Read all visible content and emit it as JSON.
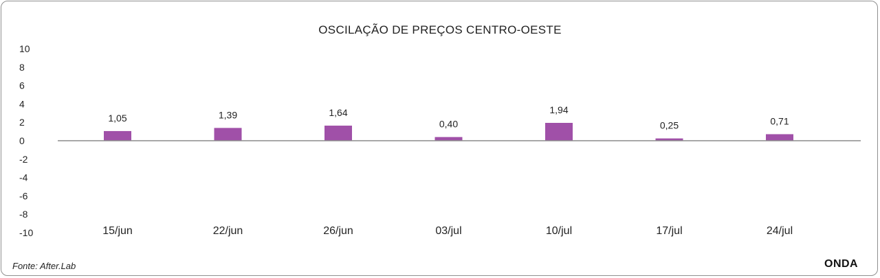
{
  "chart_data": {
    "type": "bar",
    "title": "OSCILAÇÃO DE PREÇOS CENTRO-OESTE",
    "categories": [
      "15/jun",
      "22/jun",
      "26/jun",
      "03/jul",
      "10/jul",
      "17/jul",
      "24/jul"
    ],
    "values": [
      1.05,
      1.39,
      1.64,
      0.4,
      1.94,
      0.25,
      0.71
    ],
    "data_labels": [
      "1,05",
      "1,39",
      "1,64",
      "0,40",
      "1,94",
      "0,25",
      "0,71"
    ],
    "yticks": [
      "10",
      "8",
      "6",
      "4",
      "2",
      "0",
      "-2",
      "-4",
      "-6",
      "-8",
      "-10"
    ],
    "ylim": [
      -10,
      10
    ],
    "bar_color": "#a050a8",
    "axis_color": "#8c8c8c",
    "grid": false,
    "legend": "none"
  },
  "footer": {
    "source": "Fonte: After.Lab",
    "brand": "ONDA"
  }
}
